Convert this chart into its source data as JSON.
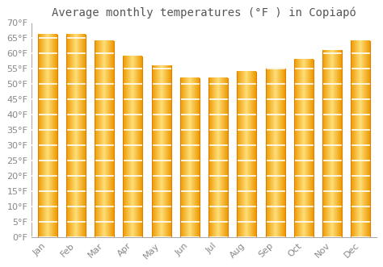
{
  "title": "Average monthly temperatures (°F ) in Copiapó",
  "months": [
    "Jan",
    "Feb",
    "Mar",
    "Apr",
    "May",
    "Jun",
    "Jul",
    "Aug",
    "Sep",
    "Oct",
    "Nov",
    "Dec"
  ],
  "values": [
    66,
    66,
    64,
    59,
    56,
    52,
    52,
    54,
    55,
    58,
    61,
    64
  ],
  "bar_color": "#F5A800",
  "bar_center_color": "#FFD878",
  "bar_edge_color": "#E08000",
  "ylim": [
    0,
    70
  ],
  "yticks": [
    0,
    5,
    10,
    15,
    20,
    25,
    30,
    35,
    40,
    45,
    50,
    55,
    60,
    65,
    70
  ],
  "ytick_labels": [
    "0°F",
    "5°F",
    "10°F",
    "15°F",
    "20°F",
    "25°F",
    "30°F",
    "35°F",
    "40°F",
    "45°F",
    "50°F",
    "55°F",
    "60°F",
    "65°F",
    "70°F"
  ],
  "bg_color": "#ffffff",
  "grid_color": "#e8e8e8",
  "title_fontsize": 10,
  "tick_fontsize": 8
}
